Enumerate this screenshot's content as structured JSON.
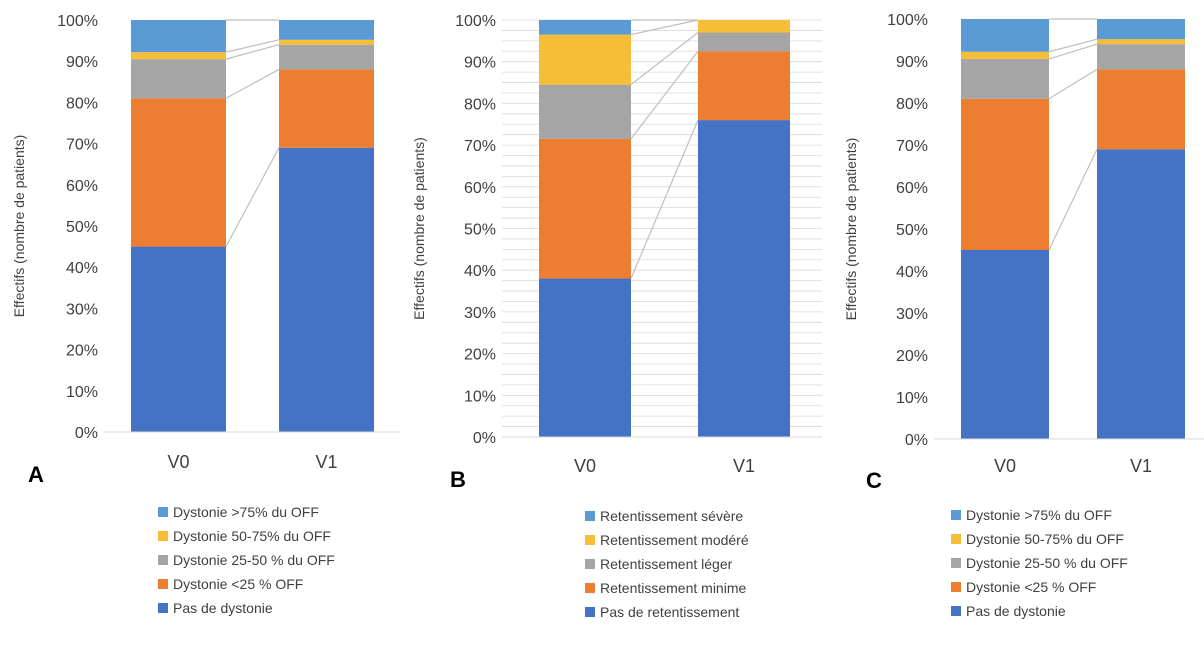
{
  "panels": [
    {
      "panel_label": "A",
      "chart_data": {
        "type": "bar",
        "stacked": true,
        "percent": true,
        "categories": [
          "V0",
          "V1"
        ],
        "ylabel": "Effectifs (nombre de patients)",
        "ylim": [
          0,
          100
        ],
        "yticks": [
          "0%",
          "10%",
          "20%",
          "30%",
          "40%",
          "50%",
          "60%",
          "70%",
          "80%",
          "90%",
          "100%"
        ],
        "grid": false,
        "connector_lines": true,
        "legend_position": "bottom",
        "series": [
          {
            "name": "Pas de dystonie",
            "color": "#4472c4",
            "values": [
              45,
              69
            ]
          },
          {
            "name": "Dystonie <25 %  OFF",
            "color": "#ed7d31",
            "values": [
              36,
              19
            ]
          },
          {
            "name": "Dystonie 25-50 % du  OFF",
            "color": "#a5a5a5",
            "values": [
              9.5,
              6
            ]
          },
          {
            "name": "Dystonie 50-75% du OFF",
            "color": "#f6bd38",
            "values": [
              1.7,
              1.2
            ]
          },
          {
            "name": "Dystonie >75% du OFF",
            "color": "#5b9bd5",
            "values": [
              7.8,
              4.8
            ]
          }
        ]
      }
    },
    {
      "panel_label": "B",
      "chart_data": {
        "type": "bar",
        "stacked": true,
        "percent": true,
        "categories": [
          "V0",
          "V1"
        ],
        "ylabel": "Effectifs (nombre de patients)",
        "ylim": [
          0,
          100
        ],
        "yticks": [
          "0%",
          "10%",
          "20%",
          "30%",
          "40%",
          "50%",
          "60%",
          "70%",
          "80%",
          "90%",
          "100%"
        ],
        "grid": true,
        "connector_lines": true,
        "legend_position": "bottom",
        "series": [
          {
            "name": "Pas de retentissement",
            "color": "#4472c4",
            "values": [
              38,
              76
            ]
          },
          {
            "name": "Retentissement minime",
            "color": "#ed7d31",
            "values": [
              33.5,
              16.5
            ]
          },
          {
            "name": "Retentissement léger",
            "color": "#a5a5a5",
            "values": [
              13,
              4.5
            ]
          },
          {
            "name": "Retentissement modéré",
            "color": "#f6bd38",
            "values": [
              12,
              3
            ]
          },
          {
            "name": "Retentissement sévère",
            "color": "#5b9bd5",
            "values": [
              3.5,
              0
            ]
          }
        ]
      }
    },
    {
      "panel_label": "C",
      "chart_data": {
        "type": "bar",
        "stacked": true,
        "percent": true,
        "categories": [
          "V0",
          "V1"
        ],
        "ylabel": "Effectifs (nombre de patients)",
        "ylim": [
          0,
          100
        ],
        "yticks": [
          "0%",
          "10%",
          "20%",
          "30%",
          "40%",
          "50%",
          "60%",
          "70%",
          "80%",
          "90%",
          "100%"
        ],
        "grid": false,
        "connector_lines": true,
        "legend_position": "bottom",
        "series": [
          {
            "name": "Pas de dystonie",
            "color": "#4472c4",
            "values": [
              45,
              69
            ]
          },
          {
            "name": "Dystonie <25 %  OFF",
            "color": "#ed7d31",
            "values": [
              36,
              19
            ]
          },
          {
            "name": "Dystonie 25-50 % du  OFF",
            "color": "#a5a5a5",
            "values": [
              9.5,
              6
            ]
          },
          {
            "name": "Dystonie 50-75% du OFF",
            "color": "#f6bd38",
            "values": [
              1.7,
              1.2
            ]
          },
          {
            "name": "Dystonie >75% du OFF",
            "color": "#5b9bd5",
            "values": [
              7.8,
              4.8
            ]
          }
        ]
      }
    }
  ]
}
